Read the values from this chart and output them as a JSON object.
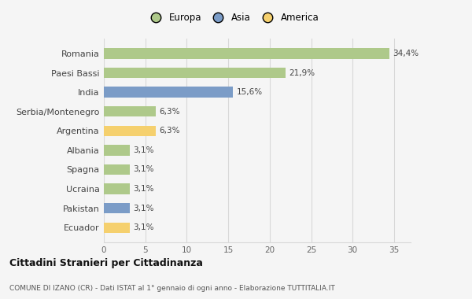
{
  "categories": [
    "Romania",
    "Paesi Bassi",
    "India",
    "Serbia/Montenegro",
    "Argentina",
    "Albania",
    "Spagna",
    "Ucraina",
    "Pakistan",
    "Ecuador"
  ],
  "values": [
    34.4,
    21.9,
    15.6,
    6.3,
    6.3,
    3.1,
    3.1,
    3.1,
    3.1,
    3.1
  ],
  "labels": [
    "34,4%",
    "21,9%",
    "15,6%",
    "6,3%",
    "6,3%",
    "3,1%",
    "3,1%",
    "3,1%",
    "3,1%",
    "3,1%"
  ],
  "continents": [
    "Europa",
    "Europa",
    "Asia",
    "Europa",
    "America",
    "Europa",
    "Europa",
    "Europa",
    "Asia",
    "America"
  ],
  "colors": {
    "Europa": "#aec98a",
    "Asia": "#7b9cc7",
    "America": "#f5d06e"
  },
  "legend_entries": [
    "Europa",
    "Asia",
    "America"
  ],
  "xlim": [
    0,
    37
  ],
  "xticks": [
    0,
    5,
    10,
    15,
    20,
    25,
    30,
    35
  ],
  "title_main": "Cittadini Stranieri per Cittadinanza",
  "title_sub": "COMUNE DI IZANO (CR) - Dati ISTAT al 1° gennaio di ogni anno - Elaborazione TUTTITALIA.IT",
  "bg_color": "#f5f5f5",
  "bar_height": 0.55,
  "grid_color": "#d8d8d8"
}
